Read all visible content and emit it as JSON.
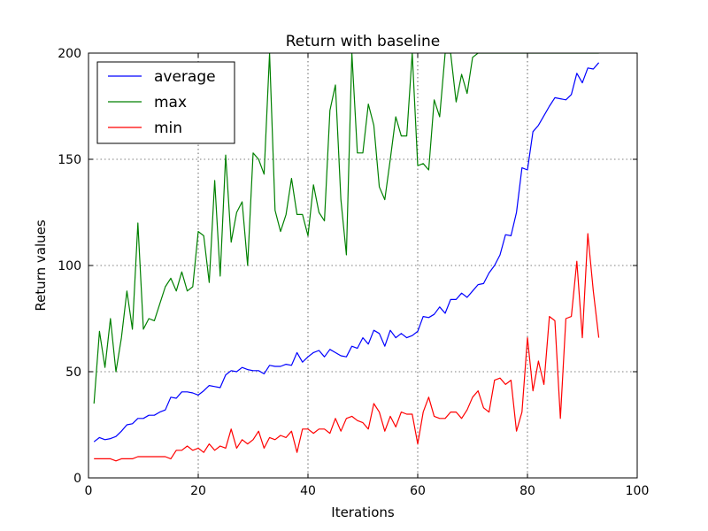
{
  "chart_data": {
    "type": "line",
    "title": "Return with baseline",
    "xlabel": "Iterations",
    "ylabel": "Return values",
    "xlim": [
      0,
      100
    ],
    "ylim": [
      0,
      200
    ],
    "xticks": [
      "0",
      "20",
      "40",
      "60",
      "80",
      "100"
    ],
    "yticks": [
      "0",
      "50",
      "100",
      "150",
      "200"
    ],
    "grid": true,
    "legend_position": "top-left",
    "x": [
      1,
      2,
      3,
      4,
      5,
      6,
      7,
      8,
      9,
      10,
      11,
      12,
      13,
      14,
      15,
      16,
      17,
      18,
      19,
      20,
      21,
      22,
      23,
      24,
      25,
      26,
      27,
      28,
      29,
      30,
      31,
      32,
      33,
      34,
      35,
      36,
      37,
      38,
      39,
      40,
      41,
      42,
      43,
      44,
      45,
      46,
      47,
      48,
      49,
      50,
      51,
      52,
      53,
      54,
      55,
      56,
      57,
      58,
      59,
      60,
      61,
      62,
      63,
      64,
      65,
      66,
      67,
      68,
      69,
      70,
      71,
      72,
      73,
      74,
      75,
      76,
      77,
      78,
      79,
      80,
      81,
      82,
      83,
      84,
      85,
      86,
      87,
      88,
      89,
      90,
      91,
      92,
      93
    ],
    "series": [
      {
        "name": "average",
        "color": "#0000ff",
        "values": [
          17,
          19,
          18,
          18.5,
          19.5,
          22,
          25,
          25.5,
          28,
          28,
          29.5,
          29.5,
          31,
          32,
          38,
          37.5,
          40.5,
          40.5,
          40,
          39,
          41,
          43.5,
          43,
          42.5,
          48.5,
          50.5,
          50,
          52,
          51,
          50.5,
          50.5,
          49,
          53,
          52.5,
          52.5,
          53.5,
          53,
          59,
          54.5,
          57,
          59,
          60,
          57,
          60.5,
          59,
          57.5,
          57,
          62,
          61,
          66,
          63,
          69.5,
          68,
          62,
          69.5,
          66,
          68,
          66,
          67,
          69,
          76,
          75.5,
          77,
          80.5,
          77.5,
          84,
          84,
          87,
          85,
          88,
          91,
          91.5,
          96.5,
          100,
          105,
          114.5,
          114,
          125,
          146,
          145,
          163,
          166,
          170.5,
          175,
          179,
          178.5,
          178,
          180.5,
          190.5,
          186,
          193,
          192.5,
          195.5
        ]
      },
      {
        "name": "max",
        "color": "#008000",
        "values": [
          35,
          69,
          52,
          75,
          50,
          66,
          88,
          70,
          120,
          70,
          75,
          74,
          82,
          90,
          94,
          88,
          97,
          88,
          90,
          116,
          114,
          92,
          140,
          95,
          152,
          111,
          125,
          130,
          100,
          153,
          150,
          143,
          200,
          126,
          116,
          124,
          141,
          124,
          124,
          114,
          138,
          125,
          121,
          173,
          185,
          131,
          105,
          200,
          153,
          153,
          176,
          166,
          137,
          131,
          150,
          170,
          161,
          161,
          200,
          147,
          148,
          145,
          178,
          170,
          200,
          200,
          177,
          190,
          181,
          198,
          200,
          200,
          200,
          200,
          200,
          200,
          200,
          200,
          200,
          200,
          200,
          200,
          200,
          200,
          200,
          200,
          200,
          200,
          200,
          200,
          200,
          200,
          200
        ]
      },
      {
        "name": "min",
        "color": "#ff0000",
        "values": [
          9,
          9,
          9,
          9,
          8,
          9,
          9,
          9,
          10,
          10,
          10,
          10,
          10,
          10,
          9,
          13,
          13,
          15,
          13,
          14,
          12,
          16,
          13,
          15,
          14,
          23,
          14,
          18,
          16,
          18,
          22,
          14,
          19,
          18,
          20,
          19,
          22,
          12,
          23,
          23,
          21,
          23,
          23,
          21,
          28,
          22,
          28,
          29,
          27,
          26,
          23,
          35,
          31,
          22,
          29,
          24,
          31,
          30,
          30,
          16,
          31,
          38,
          29,
          28,
          28,
          31,
          31,
          28,
          32,
          38,
          41,
          33,
          31,
          46,
          47,
          44,
          46,
          22,
          31,
          66,
          41,
          55,
          44,
          76,
          74,
          28,
          75,
          76,
          102,
          66,
          115,
          88,
          66
        ]
      }
    ]
  }
}
